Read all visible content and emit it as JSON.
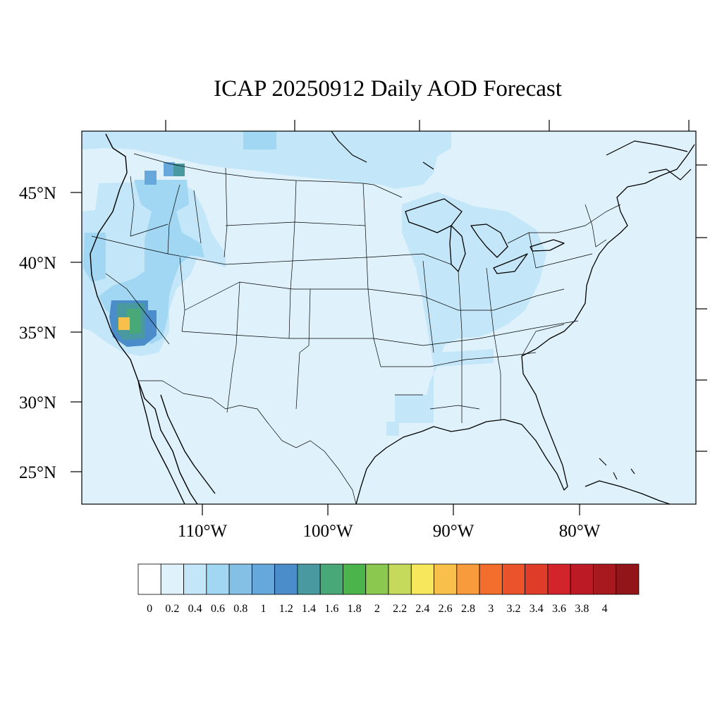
{
  "title": "ICAP 20250912 Daily AOD Forecast",
  "map": {
    "projection": "lambert-conformal",
    "region": "Continental United States",
    "background_color": "#dff2fb",
    "lat_labels": [
      "45°N",
      "40°N",
      "35°N",
      "30°N",
      "25°N"
    ],
    "lon_labels": [
      "110°W",
      "100°W",
      "90°W",
      "80°W"
    ],
    "plumes": [
      {
        "region": "southern-sierra-nevada",
        "level": "2.4-2.6",
        "color": "#f8c04a"
      },
      {
        "region": "southern-sierra-nevada-core",
        "level": "1.4-1.6",
        "color": "#48a878"
      },
      {
        "region": "southern-sierra-nevada-edge",
        "level": "1.2-1.4",
        "color": "#4899a0"
      },
      {
        "region": "southern-sierra-nevada-rim",
        "level": "1.0-1.2",
        "color": "#4b8ccb"
      },
      {
        "region": "northern-idaho",
        "level": "1.2-1.4",
        "color": "#4899a0"
      },
      {
        "region": "washington",
        "level": "0.8-1.0",
        "color": "#66a8dc"
      },
      {
        "region": "pacific-northwest",
        "level": "0.4-0.6",
        "color": "#a2d7f3"
      },
      {
        "region": "midwest",
        "level": "0.2-0.4",
        "color": "#c3e6f8"
      }
    ]
  },
  "colorbar": {
    "labels": [
      "0",
      "0.2",
      "0.4",
      "0.6",
      "0.8",
      "1",
      "1.2",
      "1.4",
      "1.6",
      "1.8",
      "2",
      "2.2",
      "2.4",
      "2.6",
      "2.8",
      "3",
      "3.2",
      "3.4",
      "3.6",
      "3.8",
      "4"
    ],
    "colors": [
      "#ffffff",
      "#dff2fb",
      "#c3e6f8",
      "#a2d7f3",
      "#84bfe6",
      "#66a8dc",
      "#4b8ccb",
      "#4899a0",
      "#48a878",
      "#4bb54c",
      "#8bc84f",
      "#c5d95a",
      "#f7e75c",
      "#f8c04a",
      "#f79b3c",
      "#f36d2c",
      "#eb532b",
      "#e03c2a",
      "#d3232b",
      "#bc1b25",
      "#a8181f",
      "#921519"
    ]
  }
}
